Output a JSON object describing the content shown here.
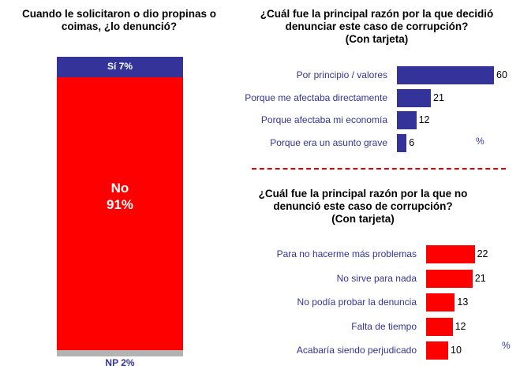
{
  "chart_data": [
    {
      "type": "bar",
      "orientation": "stacked-vertical",
      "title": "Cuando le solicitaron o dio propinas o coimas, ¿lo denunció?",
      "segments": [
        {
          "name": "Sí",
          "value": 7,
          "label": "Sí  7%",
          "color": "#333399"
        },
        {
          "name": "No",
          "value": 91,
          "label_line1": "No",
          "label_line2": "91%",
          "color": "#ff0000"
        },
        {
          "name": "NP",
          "value": 2,
          "label": "NP 2%",
          "color": "#b3b3b3"
        }
      ]
    },
    {
      "type": "bar",
      "orientation": "horizontal",
      "title_line1": "¿Cuál fue la principal razón por la que decidió",
      "title_line2": "denunciar este caso de corrupción?",
      "title_line3": "(Con tarjeta)",
      "color": "#333399",
      "unit": "%",
      "categories": [
        "Por principio / valores",
        "Porque me afectaba directamente",
        "Porque afectaba mi economía",
        "Porque era un asunto grave"
      ],
      "values": [
        60,
        21,
        12,
        6
      ]
    },
    {
      "type": "bar",
      "orientation": "horizontal",
      "title_line1": "¿Cuál fue la principal razón por la que no",
      "title_line2": "denunció este caso de corrupción?",
      "title_line3": "(Con tarjeta)",
      "color": "#ff0000",
      "unit": "%",
      "categories": [
        "Para no hacerme más problemas",
        "No sirve para nada",
        "No podía probar la denuncia",
        "Falta de tiempo",
        "Acabaría siendo perjudicado"
      ],
      "values": [
        22,
        21,
        13,
        12,
        10
      ]
    }
  ]
}
